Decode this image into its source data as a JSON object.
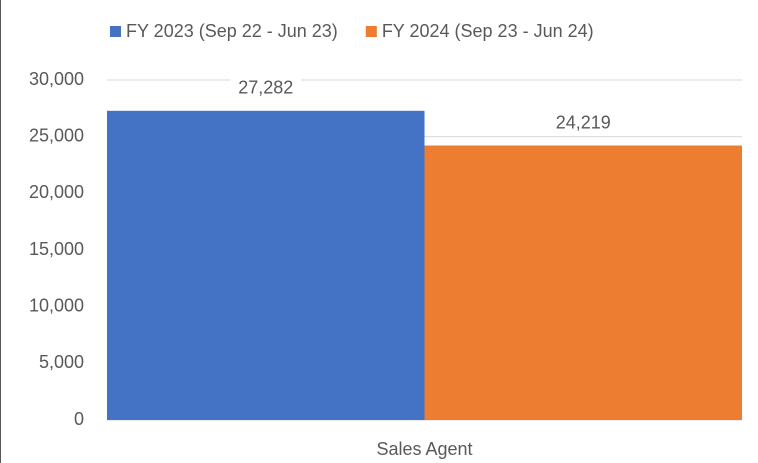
{
  "chart_data": {
    "type": "bar",
    "categories": [
      "Sales Agent"
    ],
    "series": [
      {
        "name": "FY 2023 (Sep 22 - Jun 23)",
        "color": "#4472c4",
        "values": [
          27282
        ],
        "value_labels": [
          "27,282"
        ]
      },
      {
        "name": "FY 2024 (Sep 23 - Jun 24)",
        "color": "#ed7d31",
        "values": [
          24219
        ],
        "value_labels": [
          "24,219"
        ]
      }
    ],
    "ylim": [
      0,
      30000
    ],
    "yticks": [
      0,
      {
        "value": 5000,
        "label": "5,000"
      },
      {
        "value": 10000,
        "label": "10,000"
      },
      {
        "value": 15000,
        "label": "15,000"
      },
      {
        "value": 20000,
        "label": "20,000"
      },
      {
        "value": 25000,
        "label": "25,000"
      },
      {
        "value": 30000,
        "label": "30,000"
      }
    ],
    "grid": true,
    "legend": "top"
  }
}
